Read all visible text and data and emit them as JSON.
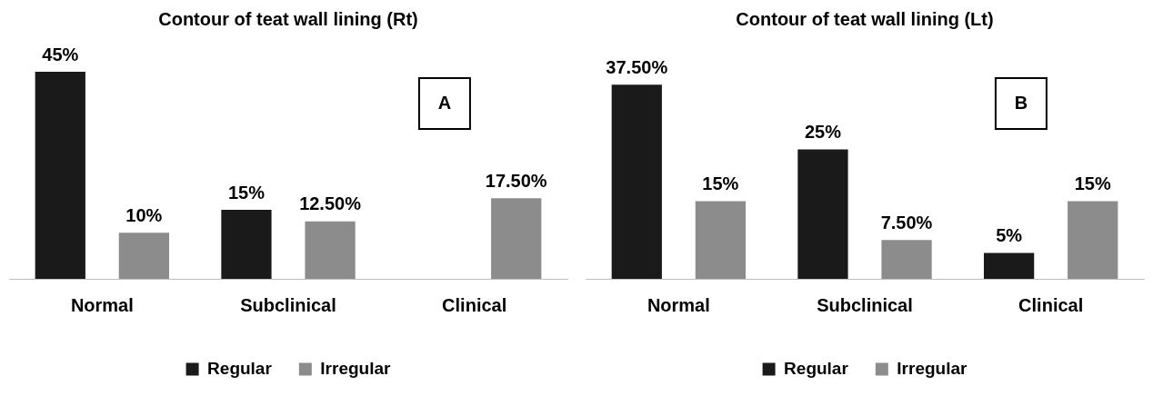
{
  "chart_data": [
    {
      "type": "bar",
      "title": "Contour of teat wall lining (Rt)",
      "categories": [
        "Normal",
        "Subclinical",
        "Clinical"
      ],
      "series": [
        {
          "name": "Regular",
          "color": "#1a1a1a",
          "values": [
            45,
            15,
            null
          ],
          "value_labels": [
            "45%",
            "15%",
            null
          ]
        },
        {
          "name": "Irregular",
          "color": "#8c8c8c",
          "values": [
            10,
            12.5,
            17.5
          ],
          "value_labels": [
            "10%",
            "12.50%",
            "17.50%"
          ]
        }
      ],
      "legend": "bottom",
      "grid": false,
      "annotations": [
        "A"
      ]
    },
    {
      "type": "bar",
      "title": "Contour of teat wall lining (Lt)",
      "categories": [
        "Normal",
        "Subclinical",
        "Clinical"
      ],
      "series": [
        {
          "name": "Regular",
          "color": "#1a1a1a",
          "values": [
            37.5,
            25,
            5
          ],
          "value_labels": [
            "37.50%",
            "25%",
            "5%"
          ]
        },
        {
          "name": "Irregular",
          "color": "#8c8c8c",
          "values": [
            15,
            7.5,
            15
          ],
          "value_labels": [
            "15%",
            "7.50%",
            "15%"
          ]
        }
      ],
      "legend": "bottom",
      "grid": false,
      "annotations": [
        "B"
      ]
    }
  ]
}
